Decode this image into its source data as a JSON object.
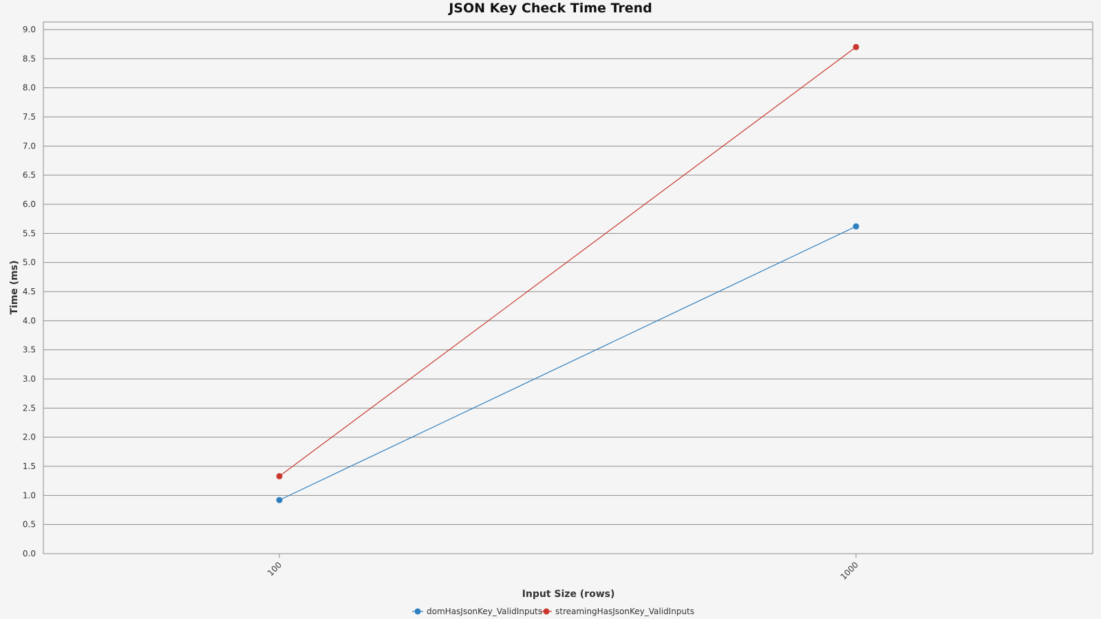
{
  "chart_data": {
    "type": "line",
    "title": "JSON Key Check Time Trend",
    "xlabel": "Input Size (rows)",
    "ylabel": "Time (ms)",
    "x_scale": "log",
    "categories": [
      "100",
      "1000"
    ],
    "x": [
      100,
      1000
    ],
    "ylim": [
      0,
      9.0
    ],
    "y_ticks": [
      0.0,
      0.5,
      1.0,
      1.5,
      2.0,
      2.5,
      3.0,
      3.5,
      4.0,
      4.5,
      5.0,
      5.5,
      6.0,
      6.5,
      7.0,
      7.5,
      8.0,
      8.5,
      9.0
    ],
    "grid": true,
    "legend_position": "bottom",
    "series": [
      {
        "name": "domHasJsonKey_ValidInputs",
        "color": "#2f7fbf",
        "values": [
          0.92,
          5.62
        ]
      },
      {
        "name": "streamingHasJsonKey_ValidInputs",
        "color": "#c8382e",
        "values": [
          1.33,
          8.7
        ]
      }
    ]
  }
}
